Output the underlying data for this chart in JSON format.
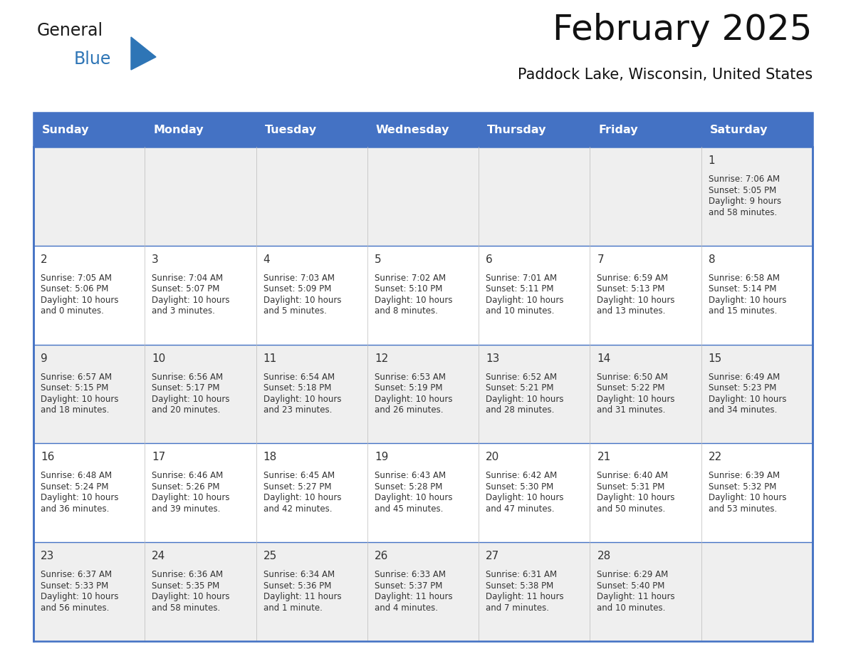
{
  "title": "February 2025",
  "subtitle": "Paddock Lake, Wisconsin, United States",
  "header_bg_color": "#4472C4",
  "header_text_color": "#FFFFFF",
  "day_names": [
    "Sunday",
    "Monday",
    "Tuesday",
    "Wednesday",
    "Thursday",
    "Friday",
    "Saturday"
  ],
  "background_color": "#FFFFFF",
  "cell_bg_even": "#EFEFEF",
  "cell_bg_odd": "#FFFFFF",
  "grid_color": "#4472C4",
  "text_color": "#333333",
  "logo_general_color": "#1a1a1a",
  "logo_blue_color": "#2E75B6",
  "days": [
    {
      "day": 1,
      "col": 6,
      "row": 0,
      "sunrise": "7:06 AM",
      "sunset": "5:05 PM",
      "daylight_h": "9 hours",
      "daylight_m": "and 58 minutes."
    },
    {
      "day": 2,
      "col": 0,
      "row": 1,
      "sunrise": "7:05 AM",
      "sunset": "5:06 PM",
      "daylight_h": "10 hours",
      "daylight_m": "and 0 minutes."
    },
    {
      "day": 3,
      "col": 1,
      "row": 1,
      "sunrise": "7:04 AM",
      "sunset": "5:07 PM",
      "daylight_h": "10 hours",
      "daylight_m": "and 3 minutes."
    },
    {
      "day": 4,
      "col": 2,
      "row": 1,
      "sunrise": "7:03 AM",
      "sunset": "5:09 PM",
      "daylight_h": "10 hours",
      "daylight_m": "and 5 minutes."
    },
    {
      "day": 5,
      "col": 3,
      "row": 1,
      "sunrise": "7:02 AM",
      "sunset": "5:10 PM",
      "daylight_h": "10 hours",
      "daylight_m": "and 8 minutes."
    },
    {
      "day": 6,
      "col": 4,
      "row": 1,
      "sunrise": "7:01 AM",
      "sunset": "5:11 PM",
      "daylight_h": "10 hours",
      "daylight_m": "and 10 minutes."
    },
    {
      "day": 7,
      "col": 5,
      "row": 1,
      "sunrise": "6:59 AM",
      "sunset": "5:13 PM",
      "daylight_h": "10 hours",
      "daylight_m": "and 13 minutes."
    },
    {
      "day": 8,
      "col": 6,
      "row": 1,
      "sunrise": "6:58 AM",
      "sunset": "5:14 PM",
      "daylight_h": "10 hours",
      "daylight_m": "and 15 minutes."
    },
    {
      "day": 9,
      "col": 0,
      "row": 2,
      "sunrise": "6:57 AM",
      "sunset": "5:15 PM",
      "daylight_h": "10 hours",
      "daylight_m": "and 18 minutes."
    },
    {
      "day": 10,
      "col": 1,
      "row": 2,
      "sunrise": "6:56 AM",
      "sunset": "5:17 PM",
      "daylight_h": "10 hours",
      "daylight_m": "and 20 minutes."
    },
    {
      "day": 11,
      "col": 2,
      "row": 2,
      "sunrise": "6:54 AM",
      "sunset": "5:18 PM",
      "daylight_h": "10 hours",
      "daylight_m": "and 23 minutes."
    },
    {
      "day": 12,
      "col": 3,
      "row": 2,
      "sunrise": "6:53 AM",
      "sunset": "5:19 PM",
      "daylight_h": "10 hours",
      "daylight_m": "and 26 minutes."
    },
    {
      "day": 13,
      "col": 4,
      "row": 2,
      "sunrise": "6:52 AM",
      "sunset": "5:21 PM",
      "daylight_h": "10 hours",
      "daylight_m": "and 28 minutes."
    },
    {
      "day": 14,
      "col": 5,
      "row": 2,
      "sunrise": "6:50 AM",
      "sunset": "5:22 PM",
      "daylight_h": "10 hours",
      "daylight_m": "and 31 minutes."
    },
    {
      "day": 15,
      "col": 6,
      "row": 2,
      "sunrise": "6:49 AM",
      "sunset": "5:23 PM",
      "daylight_h": "10 hours",
      "daylight_m": "and 34 minutes."
    },
    {
      "day": 16,
      "col": 0,
      "row": 3,
      "sunrise": "6:48 AM",
      "sunset": "5:24 PM",
      "daylight_h": "10 hours",
      "daylight_m": "and 36 minutes."
    },
    {
      "day": 17,
      "col": 1,
      "row": 3,
      "sunrise": "6:46 AM",
      "sunset": "5:26 PM",
      "daylight_h": "10 hours",
      "daylight_m": "and 39 minutes."
    },
    {
      "day": 18,
      "col": 2,
      "row": 3,
      "sunrise": "6:45 AM",
      "sunset": "5:27 PM",
      "daylight_h": "10 hours",
      "daylight_m": "and 42 minutes."
    },
    {
      "day": 19,
      "col": 3,
      "row": 3,
      "sunrise": "6:43 AM",
      "sunset": "5:28 PM",
      "daylight_h": "10 hours",
      "daylight_m": "and 45 minutes."
    },
    {
      "day": 20,
      "col": 4,
      "row": 3,
      "sunrise": "6:42 AM",
      "sunset": "5:30 PM",
      "daylight_h": "10 hours",
      "daylight_m": "and 47 minutes."
    },
    {
      "day": 21,
      "col": 5,
      "row": 3,
      "sunrise": "6:40 AM",
      "sunset": "5:31 PM",
      "daylight_h": "10 hours",
      "daylight_m": "and 50 minutes."
    },
    {
      "day": 22,
      "col": 6,
      "row": 3,
      "sunrise": "6:39 AM",
      "sunset": "5:32 PM",
      "daylight_h": "10 hours",
      "daylight_m": "and 53 minutes."
    },
    {
      "day": 23,
      "col": 0,
      "row": 4,
      "sunrise": "6:37 AM",
      "sunset": "5:33 PM",
      "daylight_h": "10 hours",
      "daylight_m": "and 56 minutes."
    },
    {
      "day": 24,
      "col": 1,
      "row": 4,
      "sunrise": "6:36 AM",
      "sunset": "5:35 PM",
      "daylight_h": "10 hours",
      "daylight_m": "and 58 minutes."
    },
    {
      "day": 25,
      "col": 2,
      "row": 4,
      "sunrise": "6:34 AM",
      "sunset": "5:36 PM",
      "daylight_h": "11 hours",
      "daylight_m": "and 1 minute."
    },
    {
      "day": 26,
      "col": 3,
      "row": 4,
      "sunrise": "6:33 AM",
      "sunset": "5:37 PM",
      "daylight_h": "11 hours",
      "daylight_m": "and 4 minutes."
    },
    {
      "day": 27,
      "col": 4,
      "row": 4,
      "sunrise": "6:31 AM",
      "sunset": "5:38 PM",
      "daylight_h": "11 hours",
      "daylight_m": "and 7 minutes."
    },
    {
      "day": 28,
      "col": 5,
      "row": 4,
      "sunrise": "6:29 AM",
      "sunset": "5:40 PM",
      "daylight_h": "11 hours",
      "daylight_m": "and 10 minutes."
    }
  ]
}
